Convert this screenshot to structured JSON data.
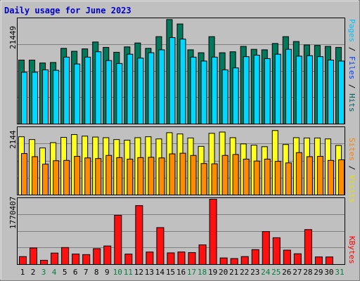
{
  "chart_data": {
    "type": "bar",
    "title": "Daily usage for June 2023",
    "categories": [
      "1",
      "2",
      "3",
      "4",
      "5",
      "6",
      "7",
      "8",
      "9",
      "10",
      "11",
      "12",
      "13",
      "14",
      "15",
      "16",
      "17",
      "18",
      "19",
      "20",
      "21",
      "22",
      "23",
      "24",
      "25",
      "26",
      "27",
      "28",
      "29",
      "30",
      "31"
    ],
    "weekend_days": [
      "3",
      "4",
      "10",
      "11",
      "17",
      "18",
      "24",
      "25",
      "31"
    ],
    "panels": [
      {
        "name": "pages-files-hits",
        "ymax_label": "21449",
        "ylim": [
          0,
          21449
        ],
        "right_labels": [
          {
            "text": "Pages",
            "color": "#00c0ff"
          },
          {
            "text": "Files",
            "color": "#0040ff"
          },
          {
            "text": "Hits",
            "color": "#006060"
          }
        ],
        "series": [
          {
            "name": "Hits",
            "color": "#007a5a",
            "values": [
              13100,
              13100,
              12500,
              12600,
              15500,
              14900,
              15400,
              16800,
              15700,
              14700,
              15800,
              16600,
              15500,
              17900,
              21400,
              20500,
              15200,
              14600,
              17900,
              14600,
              14800,
              15900,
              15300,
              15200,
              16500,
              17900,
              16900,
              16200,
              16100,
              15900,
              15700
            ]
          },
          {
            "name": "Files",
            "color": "#0060ff",
            "values": []
          },
          {
            "name": "Pages",
            "color": "#00d8ff",
            "values": [
              10600,
              10600,
              11100,
              11000,
              13700,
              12300,
              13700,
              14800,
              13000,
              12400,
              14300,
              13500,
              14600,
              15200,
              17700,
              17400,
              13700,
              12900,
              13700,
              11100,
              11500,
              13800,
              14100,
              13400,
              14300,
              15300,
              13900,
              14000,
              13800,
              13100,
              12900
            ]
          }
        ]
      },
      {
        "name": "visits-sites",
        "ymax_label": "2144",
        "ylim": [
          0,
          2144
        ],
        "right_labels": [
          {
            "text": "Sites",
            "color": "#ff8000"
          },
          {
            "text": "Visits",
            "color": "#e0e000"
          }
        ],
        "series": [
          {
            "name": "Visits",
            "color": "#ffff20",
            "values": [
              1870,
              1780,
              1510,
              1680,
              1850,
              1940,
              1890,
              1860,
              1840,
              1780,
              1760,
              1840,
              1870,
              1800,
              2000,
              1960,
              1830,
              1560,
              1980,
              2020,
              1840,
              1640,
              1600,
              1550,
              2070,
              1620,
              1840,
              1830,
              1830,
              1800,
              1590
            ]
          },
          {
            "name": "Sites",
            "color": "#ff8c00",
            "values": [
              1330,
              1230,
              990,
              1100,
              1110,
              1240,
              1190,
              1170,
              1270,
              1200,
              1150,
              1200,
              1210,
              1190,
              1320,
              1340,
              1270,
              1010,
              1000,
              1270,
              1300,
              1150,
              1090,
              1150,
              1080,
              1030,
              1360,
              1230,
              1240,
              1110,
              1130
            ]
          }
        ]
      },
      {
        "name": "kbytes",
        "ymax_label": "1770407",
        "ylim": [
          0,
          1770407
        ],
        "right_labels": [
          {
            "text": "KBytes",
            "color": "#ff0000"
          }
        ],
        "series": [
          {
            "name": "KBytes",
            "color": "#ff1010",
            "values": [
              214000,
              448000,
              115000,
              310000,
              460000,
              283000,
              269000,
              429000,
              502000,
              1333000,
              282000,
              1596000,
              338000,
              1000000,
              315000,
              339000,
              323000,
              533000,
              1770407,
              178000,
              161000,
              215000,
              403000,
              893000,
              726000,
              389000,
              291000,
              946000,
              205000,
              204000,
              0
            ]
          }
        ]
      }
    ]
  }
}
